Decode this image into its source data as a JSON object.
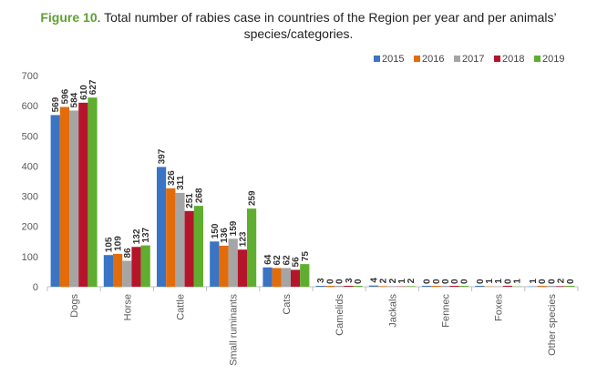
{
  "figure_label": "Figure 10",
  "title_text": ". Total number of rabies case in countries of the Region per year and per animals’",
  "title_line2": "species/categories.",
  "colors": {
    "2015": "#3a74c4",
    "2016": "#e36c0a",
    "2017": "#a5a5a5",
    "2018": "#b5152b",
    "2019": "#5fae2f",
    "axis": "#bfbfbf",
    "grid": "#e0e0e0"
  },
  "chart_data": {
    "type": "bar",
    "title": "Total number of rabies case in countries of the Region per year and per animals’ species/categories.",
    "xlabel": "",
    "ylabel": "",
    "ylim": [
      0,
      700
    ],
    "yticks": [
      0,
      100,
      200,
      300,
      400,
      500,
      600,
      700
    ],
    "grid": false,
    "legend_position": "top-right",
    "categories": [
      "Dogs",
      "Horse",
      "Cattle",
      "Small ruminants",
      "Cats",
      "Camelids",
      "Jackals",
      "Fennec",
      "Foxes",
      "Other species"
    ],
    "series": [
      {
        "name": "2015",
        "values": [
          569,
          105,
          397,
          150,
          64,
          3,
          4,
          0,
          0,
          1
        ]
      },
      {
        "name": "2016",
        "values": [
          596,
          109,
          326,
          136,
          62,
          0,
          2,
          0,
          1,
          0
        ]
      },
      {
        "name": "2017",
        "values": [
          584,
          86,
          311,
          159,
          62,
          0,
          2,
          0,
          1,
          0
        ]
      },
      {
        "name": "2018",
        "values": [
          610,
          132,
          251,
          123,
          56,
          3,
          1,
          0,
          0,
          2
        ]
      },
      {
        "name": "2019",
        "values": [
          627,
          137,
          268,
          259,
          75,
          0,
          2,
          0,
          1,
          0
        ]
      }
    ]
  }
}
